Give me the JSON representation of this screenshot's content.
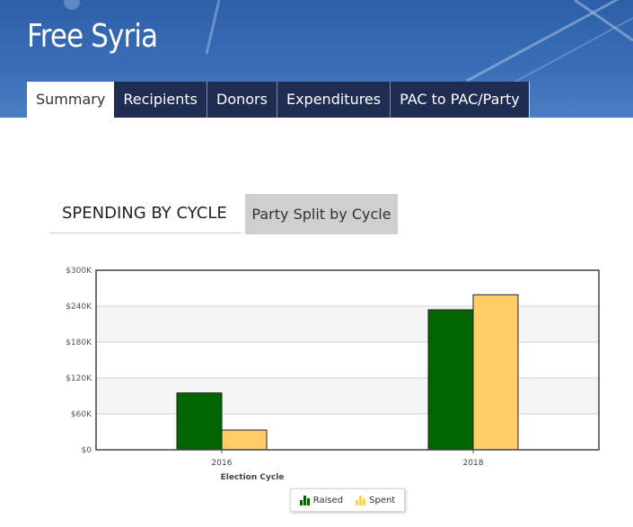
{
  "header": {
    "title": "Free Syria",
    "tabs": [
      "Summary",
      "Recipients",
      "Donors",
      "Expenditures",
      "PAC to PAC/Party"
    ],
    "active_tab": "Summary"
  },
  "section_tabs": {
    "active": "SPENDING BY CYCLE",
    "other": "Party Split by Cycle"
  },
  "colors": {
    "header_blue": "#2c5fa6",
    "tab_dark": "#1f2d52",
    "raised": "#006400",
    "spent": "#ffcc66"
  },
  "chart_data": {
    "type": "bar",
    "categories": [
      "2016",
      "2018"
    ],
    "series": [
      {
        "name": "Raised",
        "values": [
          95000,
          234000
        ]
      },
      {
        "name": "Spent",
        "values": [
          33000,
          259000
        ]
      }
    ],
    "xlabel": "Election Cycle",
    "ylabel": "",
    "ylim": [
      0,
      300000
    ],
    "yticks": [
      "$0",
      "$60K",
      "$120K",
      "$180K",
      "$240K",
      "$300K"
    ],
    "ytick_values": [
      0,
      60000,
      120000,
      180000,
      240000,
      300000
    ],
    "legend_position": "bottom-center",
    "grid": true
  }
}
